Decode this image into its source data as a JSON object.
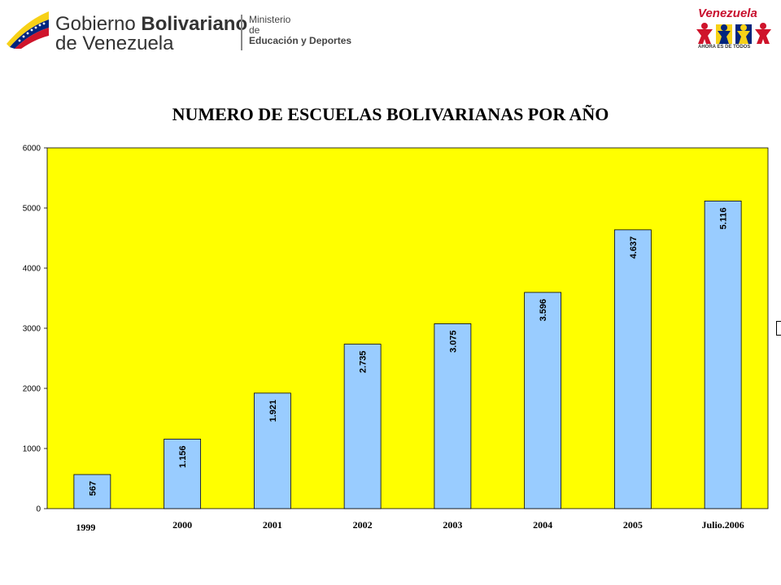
{
  "header": {
    "gov_word1": "Gobierno",
    "gov_word2": "Bolivariano",
    "gov_line2": "de Venezuela",
    "ministry_line1": "Ministerio",
    "ministry_line2": "de",
    "ministry_line3": "Educación y Deportes",
    "ven_logo_title": "Venezuela",
    "ven_logo_sub": "AHORA ES DE TODOS"
  },
  "colors": {
    "plot_bg": "#ffff00",
    "bar_fill": "#99ccff",
    "flag_yellow": "#f7d117",
    "flag_blue": "#00247d",
    "flag_red": "#cf142b"
  },
  "chart_data": {
    "type": "bar",
    "title": "NUMERO DE ESCUELAS BOLIVARIANAS POR AÑO",
    "xlabel": "",
    "ylabel": "",
    "ylim": [
      0,
      6000
    ],
    "yticks": [
      "0",
      "1000",
      "2000",
      "3000",
      "4000",
      "5000",
      "6000"
    ],
    "categories": [
      "1999",
      "2000",
      "2001",
      "2002",
      "2003",
      "2004",
      "2005",
      "Julio.2006"
    ],
    "values": [
      567,
      1156,
      1921,
      2735,
      3075,
      3596,
      4637,
      5116
    ],
    "data_labels": [
      "567",
      "1.156",
      "1.921",
      "2.735",
      "3.075",
      "3.596",
      "4.637",
      "5.116"
    ],
    "grid": false,
    "legend": "none"
  }
}
